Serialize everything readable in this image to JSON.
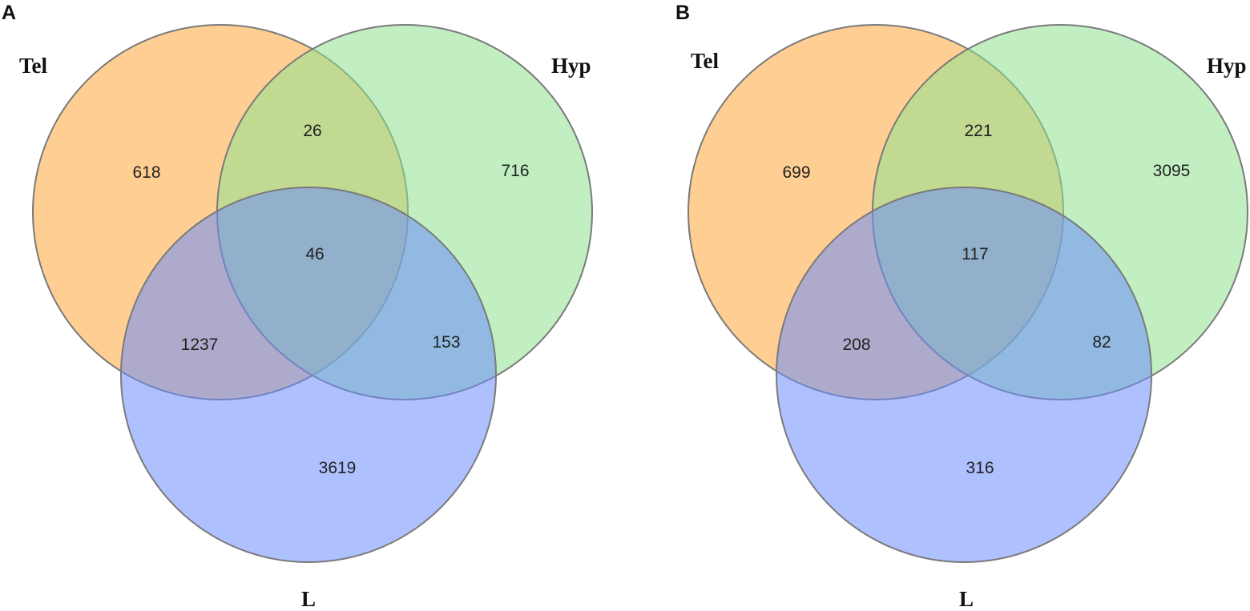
{
  "colors": {
    "tel": "#fdae4b",
    "hyp": "#8ee28f",
    "l": "#6c8cfb",
    "outline": "#7a7a7a"
  },
  "panels": [
    {
      "id": "A",
      "letter": "A",
      "sets": {
        "tel": "Tel",
        "hyp": "Hyp",
        "l": "L"
      },
      "counts": {
        "tel_only": "618",
        "hyp_only": "716",
        "l_only": "3619",
        "tel_hyp": "26",
        "tel_l": "1237",
        "hyp_l": "153",
        "all": "46"
      }
    },
    {
      "id": "B",
      "letter": "B",
      "sets": {
        "tel": "Tel",
        "hyp": "Hyp",
        "l": "L"
      },
      "counts": {
        "tel_only": "699",
        "hyp_only": "3095",
        "l_only": "316",
        "tel_hyp": "221",
        "tel_l": "208",
        "hyp_l": "82",
        "all": "117"
      }
    }
  ]
}
